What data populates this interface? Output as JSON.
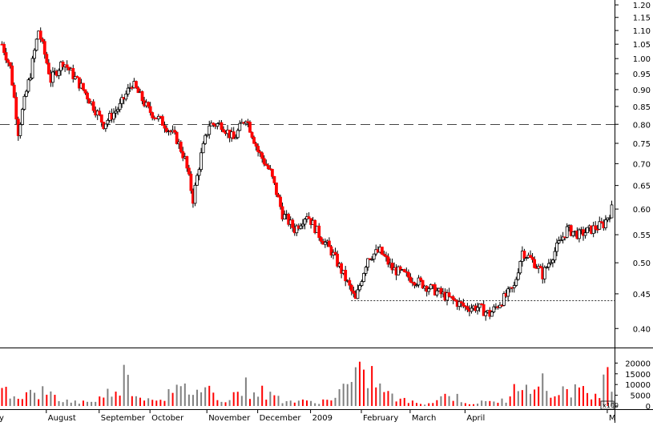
{
  "chart_data": [
    {
      "type": "candlestick",
      "title": "",
      "y_ticks": [
        "1.20",
        "1.15",
        "1.10",
        "1.05",
        "1.00",
        "0.95",
        "0.90",
        "0.85",
        "0.80",
        "0.75",
        "0.70",
        "0.65",
        "0.60",
        "0.55",
        "0.50",
        "0.45",
        "0.40"
      ],
      "ylim": [
        0.375,
        1.22
      ],
      "y_scale": "log",
      "x_labels": [
        "y",
        "August",
        "September",
        "October",
        "November",
        "December",
        "2009",
        "February",
        "March",
        "April",
        "M"
      ],
      "reference_lines": [
        {
          "value": 0.8,
          "style": "dashed"
        },
        {
          "value": 0.44,
          "style": "dotted"
        }
      ],
      "candle_colors": {
        "up": "#ffffff",
        "down": "#ff0000",
        "outline": "#000000"
      },
      "approx_close_path": [
        {
          "t": 0,
          "close": 1.05
        },
        {
          "t": 4,
          "close": 0.97
        },
        {
          "t": 8,
          "close": 0.78
        },
        {
          "t": 14,
          "close": 0.95
        },
        {
          "t": 18,
          "close": 1.1
        },
        {
          "t": 24,
          "close": 0.93
        },
        {
          "t": 30,
          "close": 0.99
        },
        {
          "t": 40,
          "close": 0.9
        },
        {
          "t": 50,
          "close": 0.8
        },
        {
          "t": 58,
          "close": 0.85
        },
        {
          "t": 64,
          "close": 0.92
        },
        {
          "t": 72,
          "close": 0.84
        },
        {
          "t": 80,
          "close": 0.8
        },
        {
          "t": 86,
          "close": 0.76
        },
        {
          "t": 90,
          "close": 0.71
        },
        {
          "t": 94,
          "close": 0.62
        },
        {
          "t": 98,
          "close": 0.72
        },
        {
          "t": 102,
          "close": 0.8
        },
        {
          "t": 108,
          "close": 0.8
        },
        {
          "t": 114,
          "close": 0.76
        },
        {
          "t": 120,
          "close": 0.82
        },
        {
          "t": 126,
          "close": 0.73
        },
        {
          "t": 132,
          "close": 0.68
        },
        {
          "t": 138,
          "close": 0.59
        },
        {
          "t": 144,
          "close": 0.56
        },
        {
          "t": 150,
          "close": 0.59
        },
        {
          "t": 156,
          "close": 0.55
        },
        {
          "t": 162,
          "close": 0.52
        },
        {
          "t": 168,
          "close": 0.48
        },
        {
          "t": 174,
          "close": 0.44
        },
        {
          "t": 180,
          "close": 0.51
        },
        {
          "t": 186,
          "close": 0.52
        },
        {
          "t": 192,
          "close": 0.49
        },
        {
          "t": 198,
          "close": 0.48
        },
        {
          "t": 204,
          "close": 0.47
        },
        {
          "t": 210,
          "close": 0.46
        },
        {
          "t": 216,
          "close": 0.45
        },
        {
          "t": 222,
          "close": 0.44
        },
        {
          "t": 228,
          "close": 0.43
        },
        {
          "t": 234,
          "close": 0.43
        },
        {
          "t": 240,
          "close": 0.42
        },
        {
          "t": 246,
          "close": 0.44
        },
        {
          "t": 252,
          "close": 0.46
        },
        {
          "t": 256,
          "close": 0.52
        },
        {
          "t": 262,
          "close": 0.5
        },
        {
          "t": 266,
          "close": 0.48
        },
        {
          "t": 272,
          "close": 0.52
        },
        {
          "t": 278,
          "close": 0.56
        },
        {
          "t": 284,
          "close": 0.55
        },
        {
          "t": 290,
          "close": 0.56
        },
        {
          "t": 296,
          "close": 0.57
        },
        {
          "t": 300,
          "close": 0.6
        }
      ]
    },
    {
      "type": "bar",
      "title": "",
      "y_ticks": [
        "20000",
        "15000",
        "10000",
        "5000",
        "0"
      ],
      "ylim": [
        0,
        25000
      ],
      "scale_label": "x100",
      "bar_colors": [
        "#ff0000",
        "#808080"
      ],
      "approx_volume_profile": [
        {
          "t": 0,
          "volume": 14000
        },
        {
          "t": 10,
          "volume": 8000
        },
        {
          "t": 20,
          "volume": 10000
        },
        {
          "t": 30,
          "volume": 4000
        },
        {
          "t": 40,
          "volume": 3000
        },
        {
          "t": 50,
          "volume": 6000
        },
        {
          "t": 60,
          "volume": 22000
        },
        {
          "t": 70,
          "volume": 5000
        },
        {
          "t": 80,
          "volume": 8000
        },
        {
          "t": 90,
          "volume": 12000
        },
        {
          "t": 100,
          "volume": 13000
        },
        {
          "t": 110,
          "volume": 5000
        },
        {
          "t": 120,
          "volume": 14000
        },
        {
          "t": 130,
          "volume": 9000
        },
        {
          "t": 140,
          "volume": 4000
        },
        {
          "t": 150,
          "volume": 3000
        },
        {
          "t": 160,
          "volume": 4000
        },
        {
          "t": 170,
          "volume": 15000
        },
        {
          "t": 180,
          "volume": 25000
        },
        {
          "t": 190,
          "volume": 8000
        },
        {
          "t": 200,
          "volume": 3000
        },
        {
          "t": 210,
          "volume": 2000
        },
        {
          "t": 220,
          "volume": 9000
        },
        {
          "t": 230,
          "volume": 2000
        },
        {
          "t": 240,
          "volume": 3000
        },
        {
          "t": 250,
          "volume": 5000
        },
        {
          "t": 256,
          "volume": 25000
        },
        {
          "t": 264,
          "volume": 20000
        },
        {
          "t": 270,
          "volume": 8000
        },
        {
          "t": 280,
          "volume": 15000
        },
        {
          "t": 290,
          "volume": 6000
        },
        {
          "t": 300,
          "volume": 25000
        }
      ]
    }
  ]
}
